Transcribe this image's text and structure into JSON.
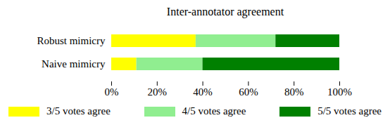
{
  "chart_data": {
    "type": "bar",
    "title": "Inter-annotator agreement",
    "orientation": "horizontal",
    "stacked": true,
    "legend": "bottom",
    "categories": [
      "Robust mimicry",
      "Naive mimicry"
    ],
    "series": [
      {
        "name": "3/5 votes agree",
        "color": "#ffff00",
        "values": [
          37,
          11
        ]
      },
      {
        "name": "4/5 votes agree",
        "color": "#90ee90",
        "values": [
          35,
          29
        ]
      },
      {
        "name": "5/5 votes agree",
        "color": "#008000",
        "values": [
          28,
          60
        ]
      }
    ],
    "xlim": [
      0,
      100
    ],
    "xticks": [
      {
        "value": 0,
        "label": "0%"
      },
      {
        "value": 20,
        "label": "20%"
      },
      {
        "value": 40,
        "label": "40%"
      },
      {
        "value": 60,
        "label": "60%"
      },
      {
        "value": 80,
        "label": "80%"
      },
      {
        "value": 100,
        "label": "100%"
      }
    ]
  }
}
